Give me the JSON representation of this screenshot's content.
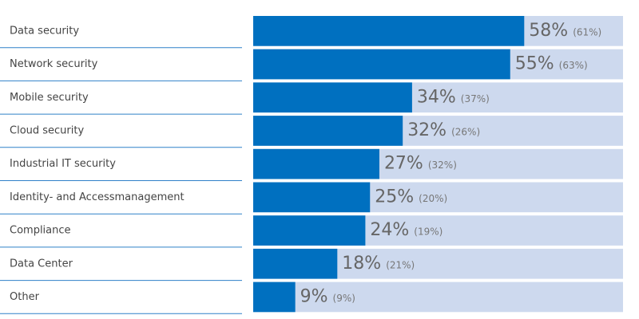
{
  "chart_data": {
    "type": "bar",
    "categories": [
      "Data security",
      "Network security",
      "Mobile security",
      "Cloud security",
      "Industrial IT security",
      "Identity- and Accessmanagement",
      "Compliance",
      "Data Center",
      "Other"
    ],
    "values": [
      58,
      55,
      34,
      32,
      27,
      25,
      24,
      18,
      9
    ],
    "value_labels": [
      "58%",
      "55%",
      "34%",
      "32%",
      "27%",
      "25%",
      "24%",
      "18%",
      "9%"
    ],
    "prior_values": [
      61,
      63,
      37,
      26,
      32,
      20,
      19,
      21,
      9
    ],
    "prior_value_labels": [
      "(61%)",
      "(63%)",
      "(37%)",
      "(26%)",
      "(32%)",
      "(20%)",
      "(19%)",
      "(21%)",
      "(9%)"
    ],
    "color": "#0070c0",
    "track_color": "#cdd9ee"
  }
}
